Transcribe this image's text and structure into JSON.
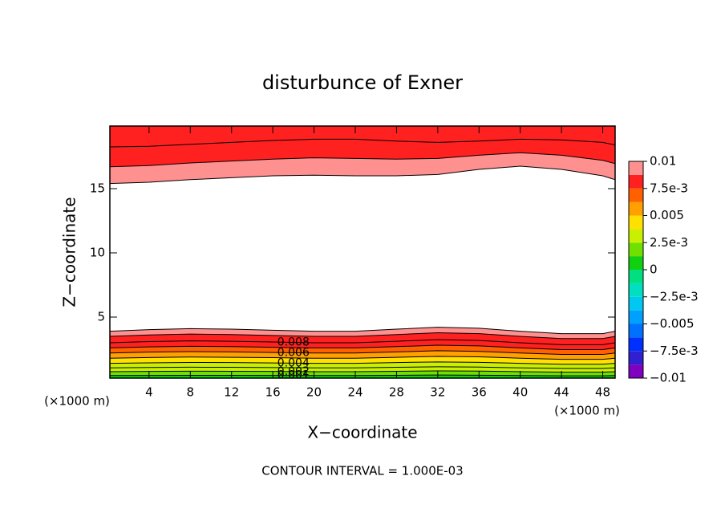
{
  "chart_data": {
    "type": "contour",
    "title": "disturbunce of Exner",
    "x_label": "X−coordinate",
    "y_label": "Z−coordinate",
    "x_unit_left": "(×1000 m)",
    "x_unit_right": "(×1000 m)",
    "footer": "CONTOUR INTERVAL = 1.000E-03",
    "xlim": [
      0.2,
      49.2
    ],
    "ylim": [
      0.25,
      19.875
    ],
    "xticks": [
      4,
      8,
      12,
      16,
      20,
      24,
      28,
      32,
      36,
      40,
      44,
      48
    ],
    "yticks": [
      5,
      10,
      15
    ],
    "contour_x": [
      0.2,
      4,
      8,
      12,
      16,
      20,
      24,
      28,
      32,
      36,
      40,
      44,
      48,
      49.2
    ],
    "regions": [
      {
        "edge": "bottom",
        "contours": [
          {
            "level": 0.001,
            "y": [
              0.45,
              0.46,
              0.47,
              0.47,
              0.46,
              0.45,
              0.45,
              0.47,
              0.49,
              0.48,
              0.45,
              0.43,
              0.43,
              0.45
            ]
          },
          {
            "level": 0.002,
            "y": [
              0.75,
              0.77,
              0.79,
              0.78,
              0.77,
              0.75,
              0.75,
              0.78,
              0.81,
              0.8,
              0.75,
              0.71,
              0.71,
              0.75
            ]
          },
          {
            "level": 0.003,
            "y": [
              1.05,
              1.08,
              1.1,
              1.09,
              1.07,
              1.05,
              1.05,
              1.09,
              1.13,
              1.11,
              1.05,
              1,
              1,
              1.05
            ]
          },
          {
            "level": 0.004,
            "y": [
              1.4,
              1.44,
              1.47,
              1.46,
              1.43,
              1.4,
              1.4,
              1.46,
              1.51,
              1.48,
              1.4,
              1.33,
              1.33,
              1.4
            ]
          },
          {
            "level": 0.005,
            "y": [
              1.8,
              1.85,
              1.89,
              1.87,
              1.84,
              1.8,
              1.8,
              1.87,
              1.94,
              1.91,
              1.8,
              1.71,
              1.71,
              1.8
            ]
          },
          {
            "level": 0.006,
            "y": [
              2.2,
              2.27,
              2.31,
              2.29,
              2.24,
              2.2,
              2.2,
              2.29,
              2.38,
              2.33,
              2.2,
              2.09,
              2.09,
              2.2
            ]
          },
          {
            "level": 0.007,
            "y": [
              2.6,
              2.68,
              2.73,
              2.7,
              2.65,
              2.6,
              2.6,
              2.7,
              2.81,
              2.76,
              2.6,
              2.47,
              2.47,
              2.6
            ]
          },
          {
            "level": 0.008,
            "y": [
              3,
              3.09,
              3.15,
              3.12,
              3.06,
              3,
              3,
              3.12,
              3.24,
              3.18,
              3,
              2.85,
              2.85,
              3
            ]
          },
          {
            "level": 0.009,
            "y": [
              3.5,
              3.61,
              3.68,
              3.64,
              3.57,
              3.5,
              3.5,
              3.64,
              3.78,
              3.71,
              3.5,
              3.33,
              3.33,
              3.5
            ]
          },
          {
            "level": 0.01,
            "y": [
              3.9,
              4.02,
              4.1,
              4.06,
              3.98,
              3.9,
              3.9,
              4.06,
              4.21,
              4.13,
              3.9,
              3.71,
              3.71,
              3.9
            ]
          }
        ]
      },
      {
        "edge": "top",
        "contours": [
          {
            "level": 0.008,
            "y": [
              18.25,
              18.3,
              18.45,
              18.6,
              18.75,
              18.85,
              18.85,
              18.7,
              18.6,
              18.7,
              18.85,
              18.8,
              18.6,
              18.4
            ]
          },
          {
            "level": 0.009,
            "y": [
              16.7,
              16.8,
              17.0,
              17.15,
              17.3,
              17.4,
              17.35,
              17.3,
              17.35,
              17.6,
              17.8,
              17.6,
              17.2,
              16.95
            ]
          },
          {
            "level": 0.01,
            "y": [
              15.4,
              15.5,
              15.7,
              15.85,
              16.0,
              16.05,
              16.0,
              16.0,
              16.1,
              16.5,
              16.75,
              16.5,
              16.0,
              15.7
            ]
          }
        ]
      }
    ],
    "contour_labels": [
      0.008,
      0.006,
      0.004,
      0.002,
      0.001
    ],
    "colorbar": {
      "lim": [
        -0.01,
        0.01
      ],
      "colors": [
        "#8000c0",
        "#3020d0",
        "#0030ff",
        "#0070ff",
        "#00a0ff",
        "#00c8f0",
        "#00e0c0",
        "#00e080",
        "#10d010",
        "#70e000",
        "#c8f000",
        "#ffe000",
        "#ffa000",
        "#ff6000",
        "#ff2020",
        "#ff9090"
      ],
      "ticks": [
        {
          "value": -0.01,
          "label": "−0.01"
        },
        {
          "value": -0.0075,
          "label": "−7.5e-3"
        },
        {
          "value": -0.005,
          "label": "−0.005"
        },
        {
          "value": -0.0025,
          "label": "−2.5e-3"
        },
        0,
        {
          "value": 0.0025,
          "label": "2.5e-3"
        },
        0.005,
        {
          "value": 0.0075,
          "label": "7.5e-3"
        },
        0.01
      ]
    }
  }
}
